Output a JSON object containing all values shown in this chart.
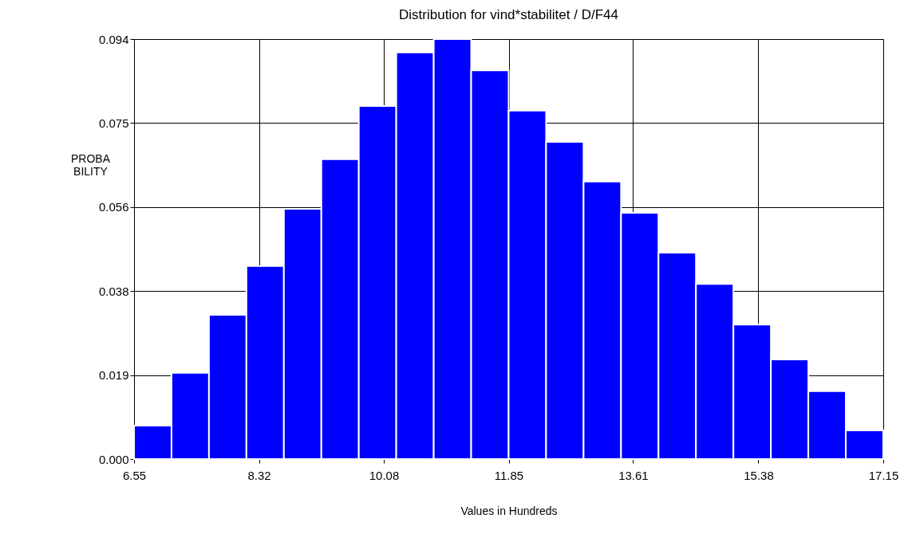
{
  "chart_data": {
    "type": "histogram",
    "title": "Distribution for vind*stabilitet / D/F44",
    "xlabel": "Values in Hundreds",
    "ylabel": "PROBA\nBILITY",
    "color": "#0000ff",
    "bins": [
      6.55,
      7.08,
      7.61,
      8.14,
      8.67,
      9.2,
      9.73,
      10.26,
      10.79,
      11.32,
      11.85,
      12.38,
      12.91,
      13.44,
      13.97,
      14.5,
      15.03,
      15.56,
      16.09,
      16.62,
      17.15
    ],
    "values": [
      0.0075,
      0.0193,
      0.0323,
      0.0432,
      0.056,
      0.0671,
      0.079,
      0.091,
      0.094,
      0.087,
      0.078,
      0.071,
      0.0621,
      0.0551,
      0.0462,
      0.0392,
      0.0301,
      0.0223,
      0.0152,
      0.0064
    ],
    "xlim": [
      6.55,
      17.15
    ],
    "ylim": [
      0,
      0.094
    ],
    "xticks": [
      6.55,
      {
        "value": 8.3167,
        "label": "8.32"
      },
      {
        "value": 10.0833,
        "label": "10.08"
      },
      11.85,
      13.61,
      {
        "value": 15.3833,
        "label": "15.38"
      },
      17.15
    ],
    "yticks": [
      {
        "value": 0,
        "label": "0.000"
      },
      {
        "value": 0.0188,
        "label": "0.019"
      },
      {
        "value": 0.0376,
        "label": "0.038"
      },
      {
        "value": 0.0564,
        "label": "0.056"
      },
      {
        "value": 0.0752,
        "label": "0.075"
      },
      {
        "value": 0.094,
        "label": "0.094"
      }
    ],
    "grid": true
  }
}
